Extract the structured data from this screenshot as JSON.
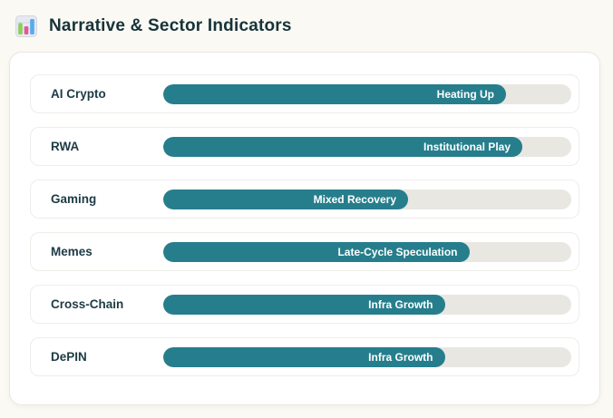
{
  "header": {
    "title": "Narrative & Sector Indicators",
    "icon": "bar-chart-icon"
  },
  "panel": {
    "rows": [
      {
        "label": "AI Crypto",
        "status": "Heating Up",
        "fill_pct": 84
      },
      {
        "label": "RWA",
        "status": "Institutional Play",
        "fill_pct": 88
      },
      {
        "label": "Gaming",
        "status": "Mixed Recovery",
        "fill_pct": 60
      },
      {
        "label": "Memes",
        "status": "Late-Cycle Speculation",
        "fill_pct": 75
      },
      {
        "label": "Cross-Chain",
        "status": "Infra Growth",
        "fill_pct": 69
      },
      {
        "label": "DePIN",
        "status": "Infra Growth",
        "fill_pct": 69
      }
    ]
  },
  "colors": {
    "page_bg": "#FAF9F3",
    "title_text": "#17333A",
    "label_text": "#1D3B44",
    "bar_fill": "#267E8C",
    "bar_track": "#E8E7E2",
    "icon_green": "#8ACF5A",
    "icon_pink": "#E5579B",
    "icon_blue": "#55ACEE",
    "icon_bg": "#E7E9F0"
  }
}
